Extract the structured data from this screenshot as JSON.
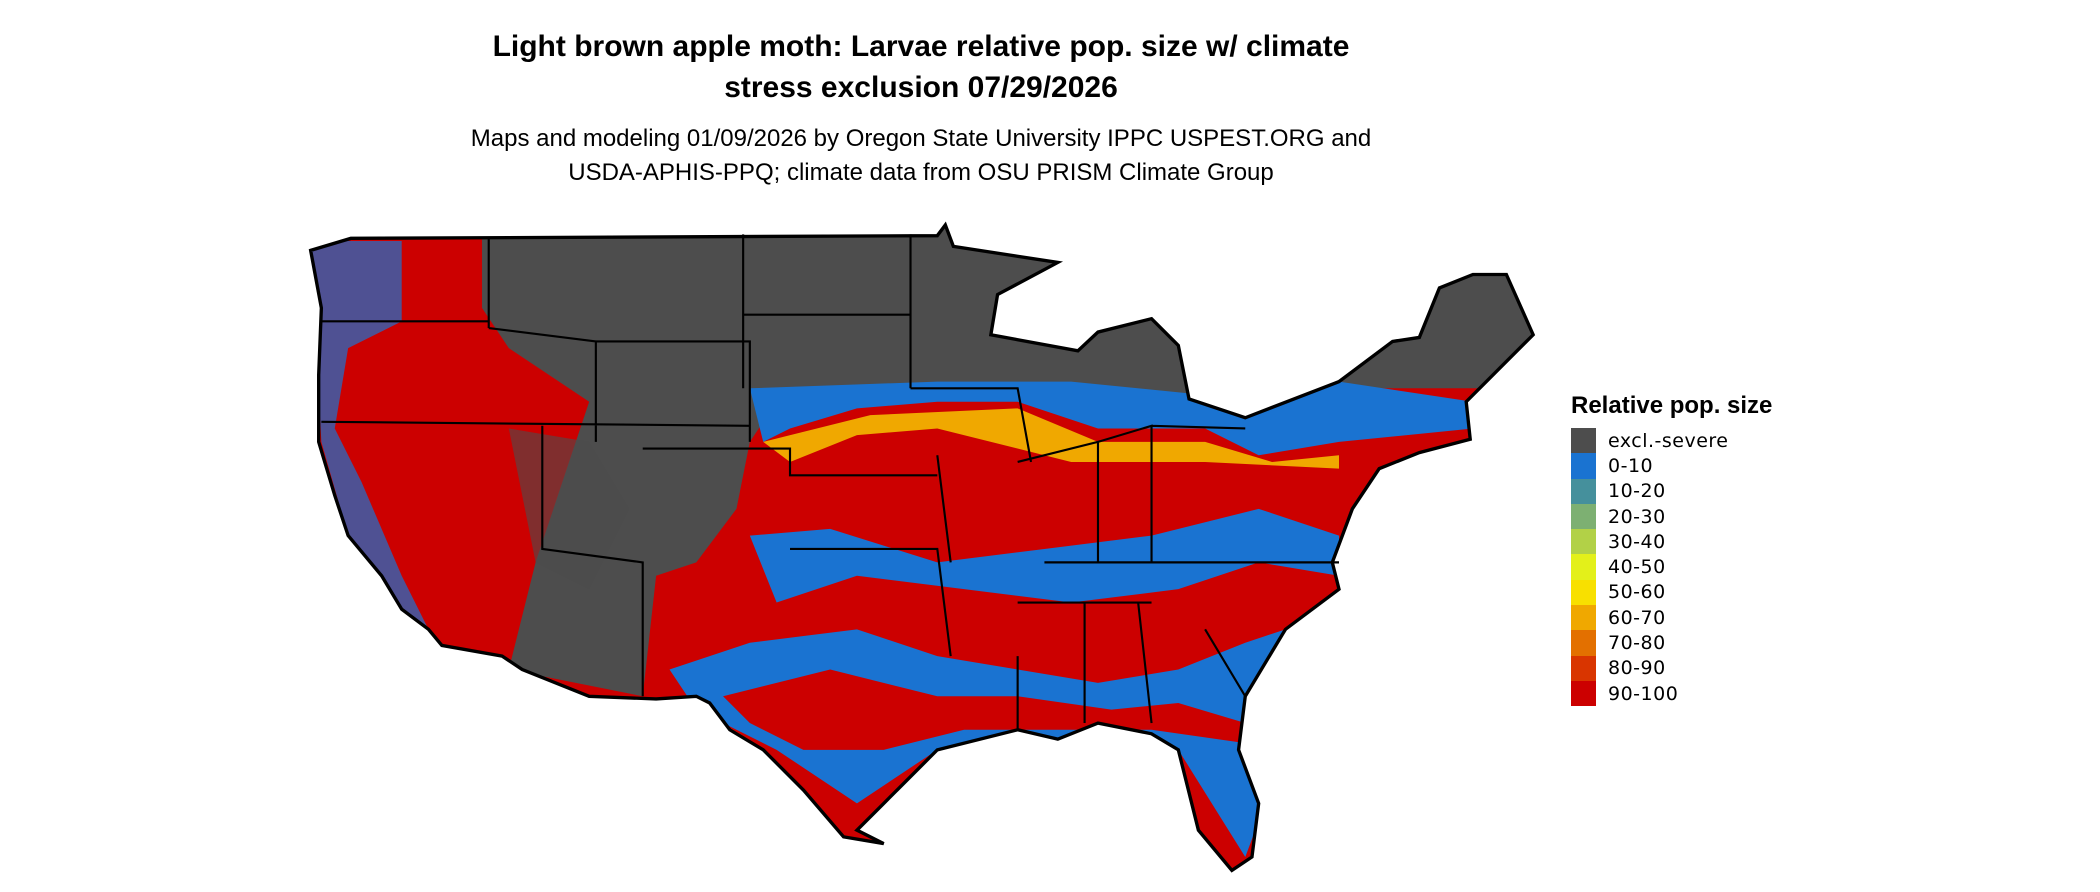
{
  "title": {
    "line1": "Light brown apple moth: Larvae relative pop. size w/ climate",
    "line2": "stress exclusion 07/29/2026"
  },
  "subtitle": {
    "line1": "Maps and modeling 01/09/2026 by Oregon State University IPPC USPEST.ORG and",
    "line2": "USDA-APHIS-PPQ; climate data from OSU PRISM Climate Group"
  },
  "legend": {
    "title": "Relative pop. size",
    "items": [
      {
        "label": "excl.-severe",
        "color": "#4d4d4d"
      },
      {
        "label": "0-10",
        "color": "#1a73d1"
      },
      {
        "label": "10-20",
        "color": "#45909c"
      },
      {
        "label": "20-30",
        "color": "#7db072"
      },
      {
        "label": "30-40",
        "color": "#b2d147"
      },
      {
        "label": "40-50",
        "color": "#e3f01a"
      },
      {
        "label": "50-60",
        "color": "#f8e000"
      },
      {
        "label": "60-70",
        "color": "#f0a800"
      },
      {
        "label": "70-80",
        "color": "#e37000"
      },
      {
        "label": "80-90",
        "color": "#d93500"
      },
      {
        "label": "90-100",
        "color": "#cc0000"
      }
    ]
  }
}
